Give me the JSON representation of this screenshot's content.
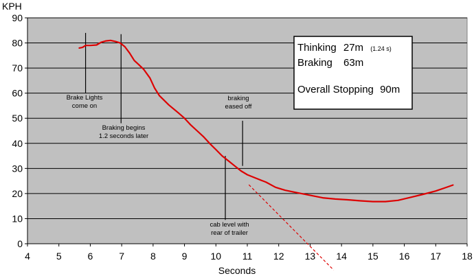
{
  "chart_data": {
    "type": "line",
    "xlabel": "Seconds",
    "ylabel": "KPH",
    "xlim": [
      4,
      18
    ],
    "ylim": [
      0,
      90
    ],
    "x_ticks": [
      "4",
      "5",
      "6",
      "7",
      "8",
      "9",
      "10",
      "11",
      "12",
      "13",
      "14",
      "15",
      "16",
      "17",
      "18"
    ],
    "y_ticks": [
      "0",
      "10",
      "20",
      "30",
      "40",
      "50",
      "60",
      "70",
      "80",
      "90"
    ],
    "grid": true,
    "series": [
      {
        "color": "#dd0000",
        "points": [
          [
            5.65,
            78
          ],
          [
            5.75,
            78.2
          ],
          [
            5.85,
            79
          ],
          [
            6.0,
            79
          ],
          [
            6.2,
            79.2
          ],
          [
            6.35,
            80.3
          ],
          [
            6.5,
            80.8
          ],
          [
            6.65,
            81
          ],
          [
            6.8,
            80.6
          ],
          [
            6.95,
            80
          ],
          [
            7.1,
            78.5
          ],
          [
            7.25,
            76
          ],
          [
            7.4,
            73
          ],
          [
            7.55,
            71.3
          ],
          [
            7.7,
            69.5
          ],
          [
            7.9,
            66
          ],
          [
            8.05,
            62
          ],
          [
            8.2,
            59
          ],
          [
            8.5,
            55.3
          ],
          [
            8.8,
            52.2
          ],
          [
            9.0,
            50
          ],
          [
            9.2,
            47.3
          ],
          [
            9.4,
            45
          ],
          [
            9.6,
            42.7
          ],
          [
            9.8,
            40
          ],
          [
            10.0,
            37.5
          ],
          [
            10.2,
            35
          ],
          [
            10.4,
            33
          ],
          [
            10.6,
            31
          ],
          [
            10.8,
            29
          ],
          [
            11.0,
            27.5
          ],
          [
            11.3,
            26
          ],
          [
            11.6,
            24.5
          ],
          [
            11.9,
            22.5
          ],
          [
            12.2,
            21.3
          ],
          [
            12.6,
            20.3
          ],
          [
            13.0,
            19.3
          ],
          [
            13.4,
            18.3
          ],
          [
            13.8,
            17.8
          ],
          [
            14.2,
            17.5
          ],
          [
            14.6,
            17.1
          ],
          [
            15.0,
            16.8
          ],
          [
            15.4,
            16.8
          ],
          [
            15.8,
            17.3
          ],
          [
            16.2,
            18.5
          ],
          [
            16.6,
            19.7
          ],
          [
            17.0,
            21
          ],
          [
            17.3,
            22.3
          ],
          [
            17.55,
            23.4
          ]
        ]
      }
    ],
    "extrapolation": {
      "color": "#dd0000",
      "dash": true,
      "from": [
        11.05,
        23.5
      ],
      "to": [
        13.75,
        -10.5
      ]
    },
    "annotations": [
      {
        "lines": [
          "Brake Lights",
          "come on"
        ],
        "marker_x": 5.85,
        "marker_y": [
          60,
          84
        ]
      },
      {
        "lines": [
          "Braking begins",
          "1.2 seconds later"
        ],
        "marker_x": 6.98,
        "marker_y": [
          48,
          83.5
        ]
      },
      {
        "lines": [
          "braking",
          "eased off"
        ],
        "marker_x": 10.85,
        "marker_y": [
          31,
          49
        ]
      },
      {
        "lines": [
          "cab level with",
          "rear of trailer"
        ],
        "marker_x": 10.3,
        "marker_y": [
          9.5,
          35
        ]
      }
    ],
    "stats_box": {
      "thinking_label": "Thinking",
      "thinking_value": "27m",
      "thinking_note": "(1.24 s)",
      "braking_label": "Braking",
      "braking_value": "63m",
      "overall_label": "Overall Stopping",
      "overall_value": "90m"
    }
  }
}
